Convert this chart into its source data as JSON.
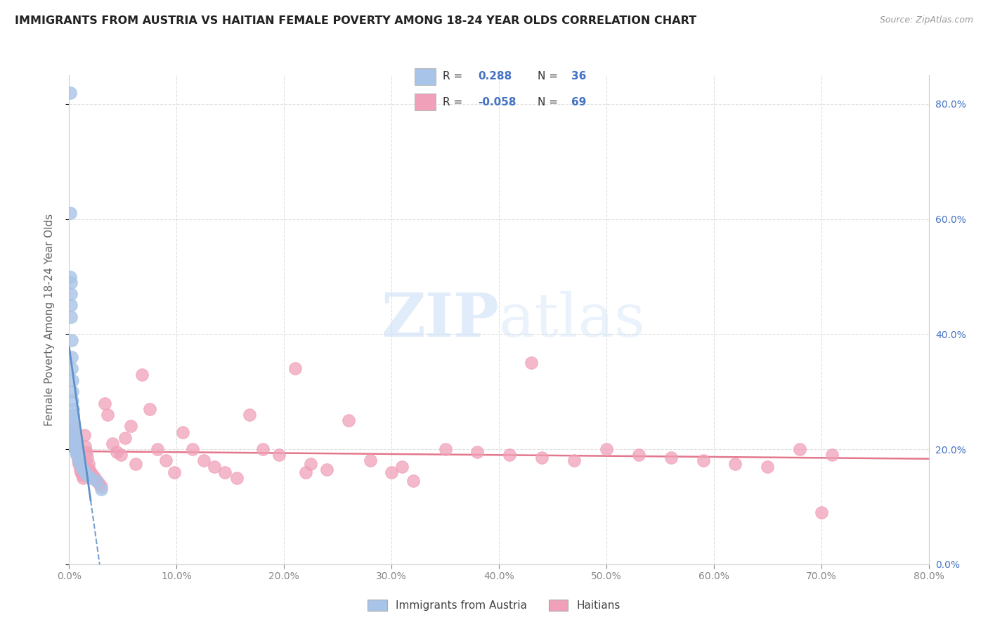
{
  "title": "IMMIGRANTS FROM AUSTRIA VS HAITIAN FEMALE POVERTY AMONG 18-24 YEAR OLDS CORRELATION CHART",
  "source": "Source: ZipAtlas.com",
  "ylabel": "Female Poverty Among 18-24 Year Olds",
  "xmin": 0.0,
  "xmax": 0.8,
  "ymin": 0.0,
  "ymax": 0.85,
  "x_ticks": [
    0.0,
    0.1,
    0.2,
    0.3,
    0.4,
    0.5,
    0.6,
    0.7,
    0.8
  ],
  "y_ticks": [
    0.0,
    0.2,
    0.4,
    0.6,
    0.8
  ],
  "austria_color": "#a8c4e8",
  "austria_line_color": "#6090c8",
  "haitian_color": "#f0a0b8",
  "haitian_line_color": "#e06880",
  "legend_blue_text": "#4472c4",
  "watermark_color": "#cce0f5",
  "background_color": "#ffffff",
  "grid_color": "#d8d8d8",
  "austria_R": "0.288",
  "austria_N": "36",
  "haitian_R": "-0.058",
  "haitian_N": "69",
  "austria_scatter_x": [
    0.0008,
    0.001,
    0.0012,
    0.0014,
    0.0016,
    0.0018,
    0.002,
    0.0022,
    0.0024,
    0.0026,
    0.0028,
    0.003,
    0.0032,
    0.0034,
    0.0036,
    0.0038,
    0.004,
    0.0042,
    0.0044,
    0.0046,
    0.0048,
    0.005,
    0.0055,
    0.006,
    0.0065,
    0.007,
    0.008,
    0.009,
    0.01,
    0.0115,
    0.013,
    0.015,
    0.017,
    0.02,
    0.025,
    0.03
  ],
  "austria_scatter_y": [
    0.82,
    0.61,
    0.5,
    0.49,
    0.47,
    0.45,
    0.43,
    0.39,
    0.36,
    0.34,
    0.32,
    0.3,
    0.285,
    0.27,
    0.26,
    0.25,
    0.24,
    0.23,
    0.225,
    0.22,
    0.215,
    0.21,
    0.205,
    0.2,
    0.196,
    0.192,
    0.185,
    0.18,
    0.175,
    0.17,
    0.165,
    0.16,
    0.155,
    0.15,
    0.145,
    0.13
  ],
  "haitian_scatter_x": [
    0.003,
    0.004,
    0.005,
    0.006,
    0.007,
    0.008,
    0.009,
    0.01,
    0.011,
    0.012,
    0.013,
    0.014,
    0.015,
    0.016,
    0.017,
    0.018,
    0.019,
    0.02,
    0.022,
    0.024,
    0.026,
    0.028,
    0.03,
    0.033,
    0.036,
    0.04,
    0.044,
    0.048,
    0.052,
    0.057,
    0.062,
    0.068,
    0.075,
    0.082,
    0.09,
    0.098,
    0.106,
    0.115,
    0.125,
    0.135,
    0.145,
    0.156,
    0.168,
    0.18,
    0.195,
    0.21,
    0.225,
    0.24,
    0.26,
    0.28,
    0.3,
    0.32,
    0.35,
    0.38,
    0.41,
    0.44,
    0.47,
    0.5,
    0.53,
    0.56,
    0.59,
    0.62,
    0.65,
    0.68,
    0.71,
    0.43,
    0.31,
    0.22,
    0.7
  ],
  "haitian_scatter_y": [
    0.24,
    0.22,
    0.21,
    0.2,
    0.19,
    0.18,
    0.175,
    0.165,
    0.16,
    0.155,
    0.15,
    0.225,
    0.205,
    0.195,
    0.185,
    0.175,
    0.165,
    0.16,
    0.155,
    0.15,
    0.145,
    0.14,
    0.135,
    0.28,
    0.26,
    0.21,
    0.195,
    0.19,
    0.22,
    0.24,
    0.175,
    0.33,
    0.27,
    0.2,
    0.18,
    0.16,
    0.23,
    0.2,
    0.18,
    0.17,
    0.16,
    0.15,
    0.26,
    0.2,
    0.19,
    0.34,
    0.175,
    0.165,
    0.25,
    0.18,
    0.16,
    0.145,
    0.2,
    0.195,
    0.19,
    0.185,
    0.18,
    0.2,
    0.19,
    0.185,
    0.18,
    0.175,
    0.17,
    0.2,
    0.19,
    0.35,
    0.17,
    0.16,
    0.09
  ]
}
